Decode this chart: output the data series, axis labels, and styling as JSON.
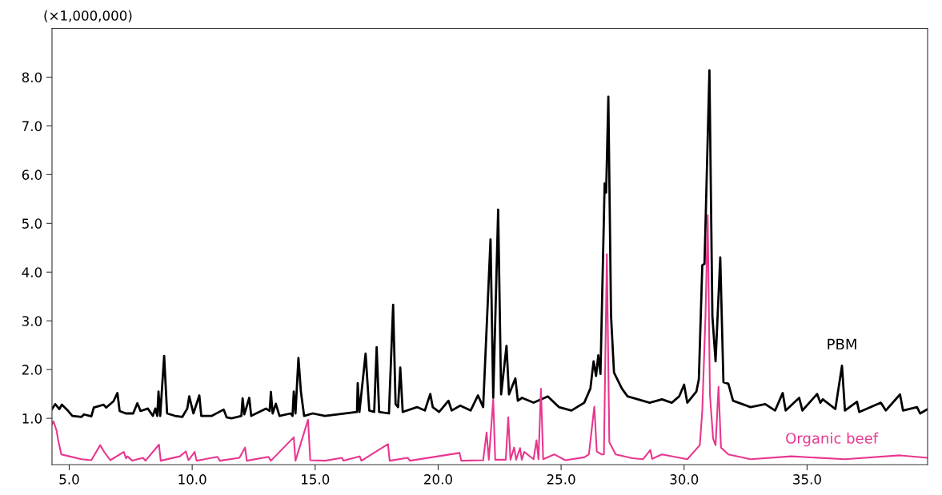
{
  "chart_data": {
    "type": "line",
    "ylabel": "(×1,000,000)",
    "xlim": [
      4.3,
      39.9
    ],
    "ylim": [
      0.05,
      9.0
    ],
    "xticks": [
      {
        "value": 5,
        "label": "5.0"
      },
      {
        "value": 10,
        "label": "10.0"
      },
      {
        "value": 15,
        "label": "15.0"
      },
      {
        "value": 20,
        "label": "20.0"
      },
      {
        "value": 25,
        "label": "25.0"
      },
      {
        "value": 30,
        "label": "30.0"
      },
      {
        "value": 35,
        "label": "35.0"
      }
    ],
    "yticks": [
      {
        "value": 1,
        "label": "1.0"
      },
      {
        "value": 2,
        "label": "2.0"
      },
      {
        "value": 3,
        "label": "3.0"
      },
      {
        "value": 4,
        "label": "4.0"
      },
      {
        "value": 5,
        "label": "5.0"
      },
      {
        "value": 6,
        "label": "6.0"
      },
      {
        "value": 7,
        "label": "7.0"
      },
      {
        "value": 8,
        "label": "8.0"
      }
    ],
    "grid": false,
    "marker": "none",
    "line_style": "solid",
    "series": [
      {
        "color": "#000000",
        "x": [
          4.3,
          4.43,
          4.6,
          4.7,
          4.94,
          5.13,
          5.5,
          5.6,
          5.9,
          6.0,
          6.2,
          6.4,
          6.5,
          6.8,
          6.96,
          7.05,
          7.3,
          7.6,
          7.77,
          7.9,
          8.2,
          8.4,
          8.5,
          8.58,
          8.63,
          8.7,
          8.86,
          8.98,
          9.3,
          9.6,
          9.8,
          9.88,
          10.05,
          10.29,
          10.37,
          10.8,
          11.28,
          11.4,
          11.6,
          12.0,
          12.05,
          12.12,
          12.32,
          12.4,
          12.8,
          13.0,
          13.15,
          13.2,
          13.27,
          13.4,
          13.55,
          14.0,
          14.08,
          14.13,
          14.2,
          14.32,
          14.42,
          14.55,
          14.9,
          15.4,
          16.7,
          16.73,
          16.8,
          17.05,
          17.2,
          17.4,
          17.5,
          17.6,
          18.0,
          18.17,
          18.27,
          18.37,
          18.46,
          18.56,
          19.14,
          19.46,
          19.68,
          19.78,
          20.04,
          20.42,
          20.55,
          20.9,
          21.32,
          21.62,
          21.83,
          22.13,
          22.24,
          22.44,
          22.56,
          22.78,
          22.88,
          23.14,
          23.24,
          23.41,
          23.88,
          24.46,
          24.91,
          25.42,
          25.94,
          26.19,
          26.32,
          26.42,
          26.51,
          26.6,
          26.77,
          26.83,
          26.92,
          27.03,
          27.15,
          27.47,
          27.7,
          28.6,
          29.1,
          29.5,
          29.8,
          30.0,
          30.13,
          30.5,
          30.6,
          30.74,
          30.83,
          31.03,
          31.15,
          31.28,
          31.47,
          31.6,
          31.8,
          31.99,
          32.7,
          33.3,
          33.7,
          34.01,
          34.13,
          34.68,
          34.81,
          35.41,
          35.54,
          35.64,
          36.15,
          36.42,
          36.54,
          37.03,
          37.12,
          38.0,
          38.2,
          38.78,
          38.9,
          39.47,
          39.6,
          39.9
        ],
        "values": [
          1.19,
          1.29,
          1.19,
          1.28,
          1.16,
          1.05,
          1.03,
          1.08,
          1.04,
          1.22,
          1.25,
          1.28,
          1.22,
          1.35,
          1.52,
          1.15,
          1.1,
          1.1,
          1.31,
          1.15,
          1.2,
          1.05,
          1.2,
          1.05,
          1.55,
          1.05,
          2.28,
          1.1,
          1.05,
          1.03,
          1.2,
          1.45,
          1.1,
          1.47,
          1.05,
          1.05,
          1.18,
          1.02,
          1.0,
          1.05,
          1.41,
          1.08,
          1.42,
          1.05,
          1.15,
          1.2,
          1.15,
          1.54,
          1.1,
          1.3,
          1.05,
          1.1,
          1.05,
          1.55,
          1.1,
          2.24,
          1.55,
          1.05,
          1.1,
          1.05,
          1.13,
          1.72,
          1.13,
          2.33,
          1.16,
          1.13,
          2.46,
          1.13,
          1.1,
          3.33,
          1.29,
          1.23,
          2.04,
          1.13,
          1.23,
          1.16,
          1.5,
          1.23,
          1.13,
          1.36,
          1.16,
          1.26,
          1.16,
          1.47,
          1.23,
          4.67,
          1.42,
          5.28,
          1.49,
          2.49,
          1.49,
          1.82,
          1.36,
          1.42,
          1.32,
          1.45,
          1.23,
          1.16,
          1.32,
          1.61,
          2.17,
          1.87,
          2.29,
          1.91,
          5.82,
          5.63,
          7.6,
          3.1,
          1.94,
          1.61,
          1.45,
          1.32,
          1.39,
          1.32,
          1.45,
          1.69,
          1.32,
          1.55,
          1.8,
          4.14,
          4.17,
          8.14,
          3.1,
          2.17,
          4.3,
          1.74,
          1.71,
          1.36,
          1.23,
          1.29,
          1.16,
          1.52,
          1.16,
          1.42,
          1.16,
          1.5,
          1.32,
          1.39,
          1.19,
          2.08,
          1.16,
          1.34,
          1.13,
          1.32,
          1.16,
          1.49,
          1.16,
          1.23,
          1.1,
          1.19
        ]
      },
      {
        "color": "#e8368f",
        "x": [
          4.3,
          4.36,
          4.49,
          4.55,
          4.68,
          5.0,
          5.5,
          5.9,
          6.26,
          6.41,
          6.67,
          7.22,
          7.31,
          7.37,
          7.56,
          8.0,
          8.1,
          8.65,
          8.72,
          9.5,
          9.74,
          9.85,
          10.1,
          10.18,
          11.03,
          11.12,
          11.92,
          12.15,
          12.22,
          13.1,
          13.2,
          14.13,
          14.2,
          14.71,
          14.8,
          15.4,
          16.09,
          16.15,
          16.81,
          16.88,
          17.96,
          18.03,
          18.76,
          18.85,
          20.87,
          20.94,
          21.83,
          21.97,
          22.06,
          22.24,
          22.32,
          22.75,
          22.85,
          22.94,
          23.09,
          23.17,
          23.33,
          23.4,
          23.5,
          23.88,
          24.0,
          24.08,
          24.18,
          24.27,
          24.72,
          25.17,
          25.94,
          26.13,
          26.35,
          26.45,
          26.64,
          26.74,
          26.86,
          26.96,
          27.22,
          27.9,
          28.33,
          28.63,
          28.7,
          29.1,
          30.13,
          30.64,
          30.74,
          30.87,
          30.96,
          31.05,
          31.18,
          31.28,
          31.4,
          31.5,
          31.8,
          32.7,
          34.36,
          36.54,
          38.78,
          39.9
        ],
        "values": [
          0.88,
          0.94,
          0.74,
          0.55,
          0.26,
          0.22,
          0.16,
          0.14,
          0.45,
          0.32,
          0.14,
          0.31,
          0.18,
          0.22,
          0.13,
          0.19,
          0.13,
          0.46,
          0.13,
          0.22,
          0.32,
          0.14,
          0.31,
          0.13,
          0.21,
          0.13,
          0.19,
          0.4,
          0.13,
          0.21,
          0.13,
          0.61,
          0.13,
          0.97,
          0.14,
          0.13,
          0.19,
          0.13,
          0.22,
          0.13,
          0.47,
          0.13,
          0.19,
          0.13,
          0.29,
          0.13,
          0.14,
          0.71,
          0.15,
          1.39,
          0.15,
          0.15,
          1.02,
          0.15,
          0.4,
          0.15,
          0.39,
          0.15,
          0.31,
          0.16,
          0.55,
          0.16,
          1.61,
          0.16,
          0.26,
          0.14,
          0.2,
          0.26,
          1.24,
          0.32,
          0.26,
          0.26,
          4.37,
          0.51,
          0.26,
          0.18,
          0.16,
          0.35,
          0.17,
          0.26,
          0.16,
          0.45,
          1.16,
          3.1,
          5.17,
          1.49,
          0.58,
          0.45,
          1.65,
          0.4,
          0.26,
          0.16,
          0.22,
          0.16,
          0.24,
          0.19
        ]
      }
    ],
    "annotations": [
      {
        "text": "PBM",
        "x": 36.42,
        "y": 2.08
      },
      {
        "text": "Organic beef",
        "x": 36.0,
        "y": 0.24
      }
    ]
  }
}
